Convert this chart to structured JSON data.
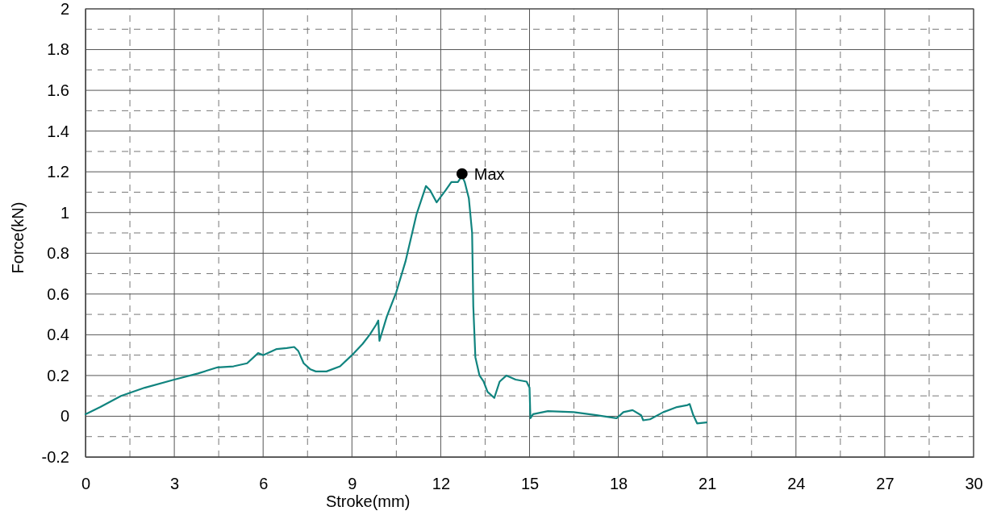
{
  "chart_data": {
    "type": "line",
    "xlabel": "Stroke(mm)",
    "ylabel": "Force(kN)",
    "xlim": [
      0,
      30
    ],
    "ylim": [
      -0.2,
      2
    ],
    "xticks": [
      0,
      {
        "value": 1.5,
        "label": null
      },
      3,
      {
        "value": 4.5,
        "label": null
      },
      6,
      {
        "value": 7.5,
        "label": null
      },
      9,
      {
        "value": 10.5,
        "label": null
      },
      12,
      {
        "value": 13.5,
        "label": null
      },
      15,
      {
        "value": 16.5,
        "label": null
      },
      18,
      {
        "value": 19.5,
        "label": null
      },
      21,
      {
        "value": 22.5,
        "label": null
      },
      24,
      {
        "value": 25.5,
        "label": null
      },
      27,
      {
        "value": 28.5,
        "label": null
      },
      30
    ],
    "yticks": [
      -0.2,
      {
        "value": -0.1,
        "label": null
      },
      0,
      {
        "value": 0.1,
        "label": null
      },
      0.2,
      {
        "value": 0.3,
        "label": null
      },
      0.4,
      {
        "value": 0.5,
        "label": null
      },
      0.6,
      {
        "value": 0.7,
        "label": null
      },
      0.8,
      {
        "value": 0.9,
        "label": null
      },
      1,
      {
        "value": 1.1,
        "label": null
      },
      1.2,
      {
        "value": 1.3,
        "label": null
      },
      1.4,
      {
        "value": 1.5,
        "label": null
      },
      1.6,
      {
        "value": 1.7,
        "label": null
      },
      1.8,
      {
        "value": 1.9,
        "label": null
      },
      2
    ],
    "grid": true,
    "series": [
      {
        "color": "#11847f",
        "x": [
          0,
          0.5,
          1.2,
          2,
          3,
          3.8,
          4.46,
          5.0,
          5.46,
          5.83,
          6.0,
          6.46,
          6.8,
          7.05,
          7.19,
          7.37,
          7.6,
          7.78,
          8.14,
          8.6,
          9.0,
          9.36,
          9.6,
          9.82,
          9.89,
          9.93,
          10.18,
          10.5,
          10.81,
          11.18,
          11.5,
          11.64,
          11.86,
          12.17,
          12.36,
          12.58,
          12.72,
          12.81,
          12.95,
          13.06,
          13.1,
          13.17,
          13.31,
          13.45,
          13.58,
          13.81,
          13.99,
          14.22,
          14.53,
          14.9,
          15.0,
          15.03,
          15.12,
          15.62,
          16.49,
          17.26,
          17.94,
          18.17,
          18.48,
          18.77,
          18.84,
          19.07,
          19.52,
          19.98,
          20.34,
          20.41,
          20.52,
          20.66,
          20.98
        ],
        "values": [
          0.01,
          0.045,
          0.1,
          0.14,
          0.18,
          0.21,
          0.24,
          0.245,
          0.26,
          0.31,
          0.3,
          0.33,
          0.335,
          0.34,
          0.32,
          0.26,
          0.23,
          0.22,
          0.22,
          0.245,
          0.3,
          0.355,
          0.4,
          0.45,
          0.47,
          0.37,
          0.49,
          0.61,
          0.76,
          0.99,
          1.13,
          1.11,
          1.05,
          1.11,
          1.15,
          1.15,
          1.18,
          1.15,
          1.07,
          0.9,
          0.54,
          0.29,
          0.2,
          0.17,
          0.12,
          0.09,
          0.17,
          0.2,
          0.18,
          0.17,
          0.14,
          -0.01,
          0.01,
          0.025,
          0.02,
          0.005,
          -0.01,
          0.02,
          0.03,
          0.005,
          -0.02,
          -0.015,
          0.02,
          0.045,
          0.055,
          0.06,
          0.01,
          -0.035,
          -0.03
        ]
      },
      {
        "type": "scatter",
        "color": "#000000",
        "marker": "circle",
        "x": [
          12.72
        ],
        "values": [
          1.19
        ]
      }
    ],
    "annotations": [
      {
        "text": "Max",
        "x": 12.72,
        "y": 1.19
      }
    ]
  }
}
